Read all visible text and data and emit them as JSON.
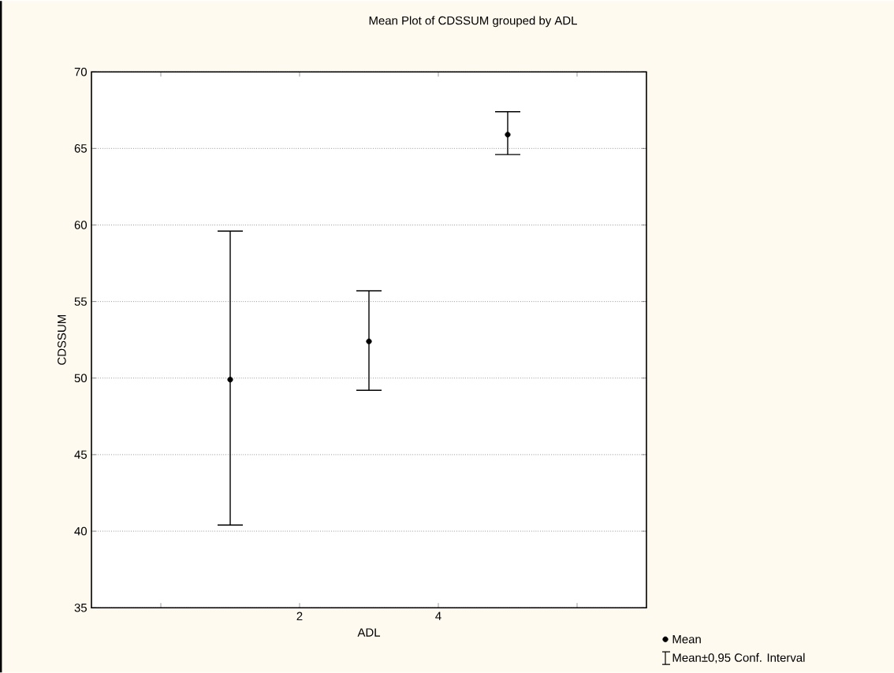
{
  "chart_data": {
    "type": "scatter",
    "title": "Mean Plot of CDSSUM grouped by ADL",
    "xlabel": "ADL",
    "ylabel": "CDSSUM",
    "x": [
      1,
      3,
      5
    ],
    "series": [
      {
        "name": "Mean",
        "color": "#000000",
        "values": [
          49.9,
          52.4,
          65.9
        ],
        "errors": [
          [
            40.4,
            59.6
          ],
          [
            49.2,
            55.7
          ],
          [
            64.6,
            67.4
          ]
        ]
      }
    ],
    "xlim": [
      -1,
      7
    ],
    "xticks": [
      {
        "value": 0,
        "label": null
      },
      2,
      4,
      {
        "value": 6,
        "label": null
      }
    ],
    "ylim": [
      35,
      70
    ],
    "yticks": [
      35,
      40,
      45,
      50,
      55,
      60,
      65,
      70
    ],
    "grid": "y",
    "marker": "circle",
    "legend": "bottom right",
    "annotations": [
      "Mean±0,95 Conf. Interval"
    ]
  }
}
